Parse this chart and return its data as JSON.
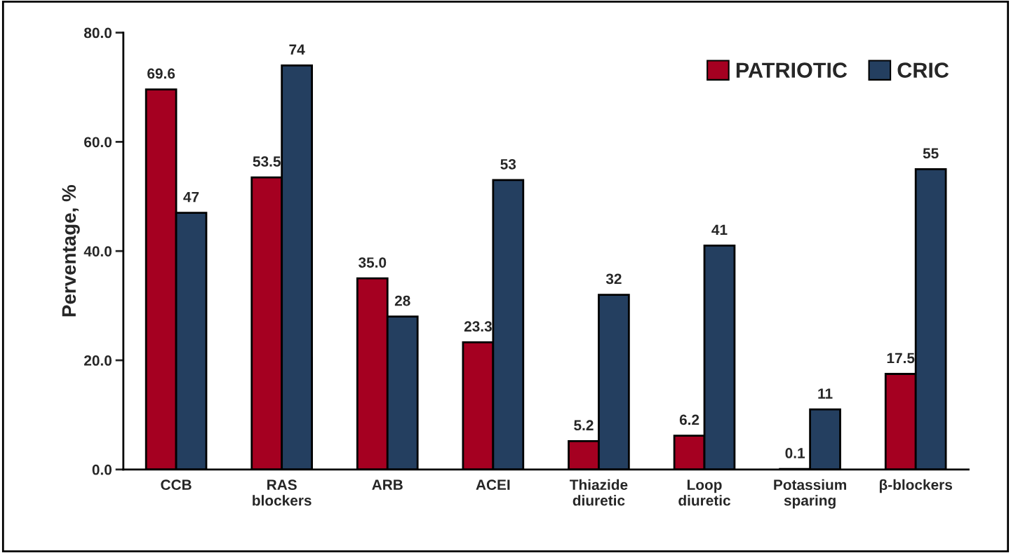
{
  "chart_data": {
    "type": "bar",
    "ylabel": "Perventage, %",
    "categories": [
      "CCB",
      "RAS\nblockers",
      "ARB",
      "ACEI",
      "Thiazide\ndiuretic",
      "Loop\ndiuretic",
      "Potassium\nsparing",
      "β-blockers"
    ],
    "series": [
      {
        "name": "PATRIOTIC",
        "color": "#a50021",
        "values": [
          69.6,
          53.5,
          35.0,
          23.3,
          5.2,
          6.2,
          0.1,
          17.5
        ],
        "value_labels": [
          "69.6",
          "53.5",
          "35.0",
          "23.3",
          "5.2",
          "6.2",
          "0.1",
          "17.5"
        ]
      },
      {
        "name": "CRIC",
        "color": "#243f60",
        "values": [
          47,
          74,
          28,
          53,
          32,
          41,
          11,
          55
        ],
        "value_labels": [
          "47",
          "74",
          "28",
          "53",
          "32",
          "41",
          "11",
          "55"
        ]
      }
    ],
    "ylim": [
      0,
      80
    ],
    "yticks": [
      {
        "value": 0,
        "label": "0.0"
      },
      {
        "value": 20,
        "label": "20.0"
      },
      {
        "value": 40,
        "label": "40.0"
      },
      {
        "value": 60,
        "label": "60.0"
      },
      {
        "value": 80,
        "label": "80.0"
      }
    ],
    "legend": "top right",
    "grid": false
  }
}
